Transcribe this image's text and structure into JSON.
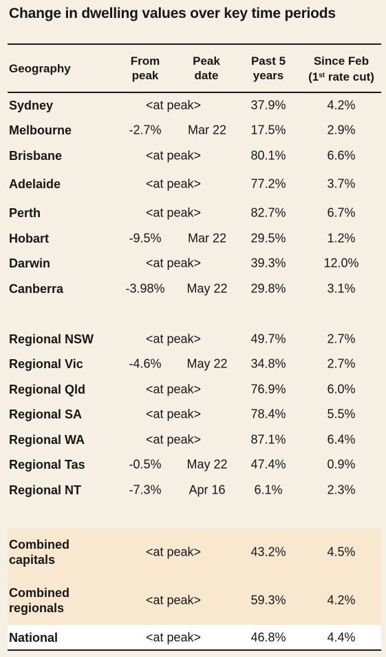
{
  "title": "Change in dwelling values over key time periods",
  "headers": {
    "geography": "Geography",
    "from_peak_1": "From",
    "from_peak_2": "peak",
    "peak_date_1": "Peak",
    "peak_date_2": "date",
    "past5_1": "Past 5",
    "past5_2": "years",
    "since_1": "Since Feb",
    "since_2_a": "(1",
    "since_2_sup": "st",
    "since_2_b": " rate cut)"
  },
  "chart_data": {
    "type": "table",
    "columns": [
      "Geography",
      "From peak",
      "Peak date",
      "Past 5 years",
      "Since Feb (1st rate cut)"
    ],
    "rows": [
      {
        "geography": "Sydney",
        "from_peak": "<at peak>",
        "peak_date": "",
        "past5": "37.9%",
        "since_feb": "4.2%"
      },
      {
        "geography": "Melbourne",
        "from_peak": "-2.7%",
        "peak_date": "Mar 22",
        "past5": "17.5%",
        "since_feb": "2.9%"
      },
      {
        "geography": "Brisbane",
        "from_peak": "<at peak>",
        "peak_date": "",
        "past5": "80.1%",
        "since_feb": "6.6%"
      },
      {
        "geography": "Adelaide",
        "from_peak": "<at peak>",
        "peak_date": "",
        "past5": "77.2%",
        "since_feb": "3.7%"
      },
      {
        "geography": "Perth",
        "from_peak": "<at peak>",
        "peak_date": "",
        "past5": "82.7%",
        "since_feb": "6.7%"
      },
      {
        "geography": "Hobart",
        "from_peak": "-9.5%",
        "peak_date": "Mar 22",
        "past5": "29.5%",
        "since_feb": "1.2%"
      },
      {
        "geography": "Darwin",
        "from_peak": "<at peak>",
        "peak_date": "",
        "past5": "39.3%",
        "since_feb": "12.0%"
      },
      {
        "geography": "Canberra",
        "from_peak": "-3.98%",
        "peak_date": "May 22",
        "past5": "29.8%",
        "since_feb": "3.1%"
      },
      {
        "geography": "Regional NSW",
        "from_peak": "<at peak>",
        "peak_date": "",
        "past5": "49.7%",
        "since_feb": "2.7%"
      },
      {
        "geography": "Regional Vic",
        "from_peak": "-4.6%",
        "peak_date": "May 22",
        "past5": "34.8%",
        "since_feb": "2.7%"
      },
      {
        "geography": "Regional Qld",
        "from_peak": "<at peak>",
        "peak_date": "",
        "past5": "76.9%",
        "since_feb": "6.0%"
      },
      {
        "geography": "Regional SA",
        "from_peak": "<at peak>",
        "peak_date": "",
        "past5": "78.4%",
        "since_feb": "5.5%"
      },
      {
        "geography": "Regional WA",
        "from_peak": "<at peak>",
        "peak_date": "",
        "past5": "87.1%",
        "since_feb": "6.4%"
      },
      {
        "geography": "Regional Tas",
        "from_peak": "-0.5%",
        "peak_date": "May 22",
        "past5": "47.4%",
        "since_feb": "0.9%"
      },
      {
        "geography": "Regional NT",
        "from_peak": "-7.3%",
        "peak_date": "Apr 16",
        "past5": "6.1%",
        "since_feb": "2.3%"
      },
      {
        "geography": "Combined capitals",
        "from_peak": "<at peak>",
        "peak_date": "",
        "past5": "43.2%",
        "since_feb": "4.5%"
      },
      {
        "geography": "Combined regionals",
        "from_peak": "<at peak>",
        "peak_date": "",
        "past5": "59.3%",
        "since_feb": "4.2%"
      },
      {
        "geography": "National",
        "from_peak": "<at peak>",
        "peak_date": "",
        "past5": "46.8%",
        "since_feb": "4.4%"
      }
    ]
  }
}
